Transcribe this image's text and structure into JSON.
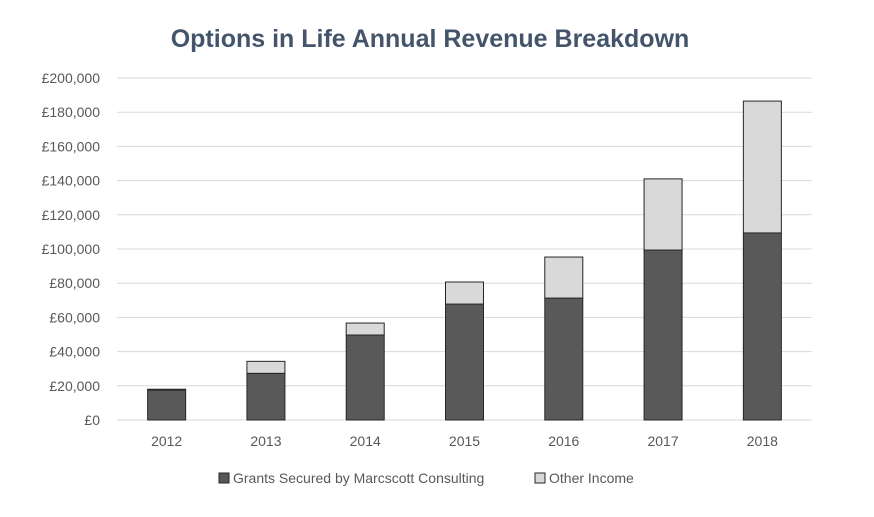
{
  "chart_data": {
    "type": "bar",
    "stacked": true,
    "title": "Options in Life Annual Revenue Breakdown",
    "xlabel": "",
    "ylabel": "",
    "categories": [
      "2012",
      "2013",
      "2014",
      "2015",
      "2016",
      "2017",
      "2018"
    ],
    "series": [
      {
        "name": "Grants Secured by Marcscott Consulting",
        "color": "#595959",
        "values": [
          17500,
          27300,
          49700,
          67800,
          71300,
          99400,
          109400
        ]
      },
      {
        "name": "Other Income",
        "color": "#d9d9d9",
        "values": [
          500,
          7000,
          7000,
          12900,
          24000,
          41600,
          77100
        ]
      }
    ],
    "ylim": [
      0,
      200000
    ],
    "yticks": [
      "£0",
      "£20,000",
      "£40,000",
      "£60,000",
      "£80,000",
      "£100,000",
      "£120,000",
      "£140,000",
      "£160,000",
      "£180,000",
      "£200,000"
    ],
    "grid": true,
    "legend": "bottom"
  }
}
